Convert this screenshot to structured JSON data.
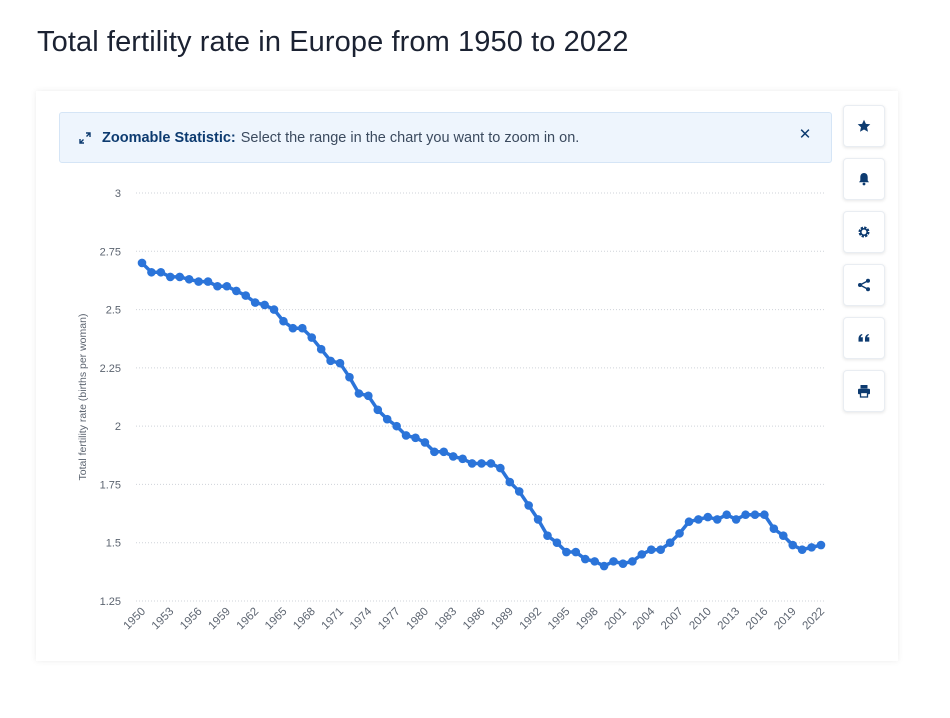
{
  "page": {
    "title": "Total fertility rate in Europe from 1950 to 2022"
  },
  "banner": {
    "label": "Zoomable Statistic:",
    "text": "Select the range in the chart you want to zoom in on.",
    "close_symbol": "✕"
  },
  "toolbar": {
    "buttons": [
      {
        "name": "favorite-button",
        "icon": "star-icon"
      },
      {
        "name": "notification-button",
        "icon": "bell-icon"
      },
      {
        "name": "settings-button",
        "icon": "gear-icon"
      },
      {
        "name": "share-button",
        "icon": "share-icon"
      },
      {
        "name": "cite-button",
        "icon": "quote-icon"
      },
      {
        "name": "print-button",
        "icon": "printer-icon"
      }
    ]
  },
  "colors": {
    "series": "#2b74d9",
    "accent": "#0d3b70",
    "banner_bg": "#eef5fd"
  },
  "chart_data": {
    "type": "line",
    "title": "Total fertility rate in Europe from 1950 to 2022",
    "xlabel": "",
    "ylabel": "Total fertility rate (births per woman)",
    "ylim": [
      1.25,
      3
    ],
    "yticks": [
      "1.25",
      "1.5",
      "1.75",
      "2",
      "2.25",
      "2.5",
      "2.75",
      "3"
    ],
    "xtick_labels": [
      "1950",
      "1953",
      "1956",
      "1959",
      "1962",
      "1965",
      "1968",
      "1971",
      "1974",
      "1977",
      "1980",
      "1983",
      "1986",
      "1989",
      "1992",
      "1995",
      "1998",
      "2001",
      "2004",
      "2007",
      "2010",
      "2013",
      "2016",
      "2019",
      "2022"
    ],
    "grid": true,
    "legend": "none",
    "series": [
      {
        "name": "Europe",
        "x": [
          1950,
          1951,
          1952,
          1953,
          1954,
          1955,
          1956,
          1957,
          1958,
          1959,
          1960,
          1961,
          1962,
          1963,
          1964,
          1965,
          1966,
          1967,
          1968,
          1969,
          1970,
          1971,
          1972,
          1973,
          1974,
          1975,
          1976,
          1977,
          1978,
          1979,
          1980,
          1981,
          1982,
          1983,
          1984,
          1985,
          1986,
          1987,
          1988,
          1989,
          1990,
          1991,
          1992,
          1993,
          1994,
          1995,
          1996,
          1997,
          1998,
          1999,
          2000,
          2001,
          2002,
          2003,
          2004,
          2005,
          2006,
          2007,
          2008,
          2009,
          2010,
          2011,
          2012,
          2013,
          2014,
          2015,
          2016,
          2017,
          2018,
          2019,
          2020,
          2021,
          2022
        ],
        "values": [
          2.7,
          2.66,
          2.66,
          2.64,
          2.64,
          2.63,
          2.62,
          2.62,
          2.6,
          2.6,
          2.58,
          2.56,
          2.53,
          2.52,
          2.5,
          2.45,
          2.42,
          2.42,
          2.38,
          2.33,
          2.28,
          2.27,
          2.21,
          2.14,
          2.13,
          2.07,
          2.03,
          2.0,
          1.96,
          1.95,
          1.93,
          1.89,
          1.89,
          1.87,
          1.86,
          1.84,
          1.84,
          1.84,
          1.82,
          1.76,
          1.72,
          1.66,
          1.6,
          1.53,
          1.5,
          1.46,
          1.46,
          1.43,
          1.42,
          1.4,
          1.42,
          1.41,
          1.42,
          1.45,
          1.47,
          1.47,
          1.5,
          1.54,
          1.59,
          1.6,
          1.61,
          1.6,
          1.62,
          1.6,
          1.62,
          1.62,
          1.62,
          1.56,
          1.53,
          1.49,
          1.47,
          1.48,
          1.49
        ]
      }
    ]
  }
}
